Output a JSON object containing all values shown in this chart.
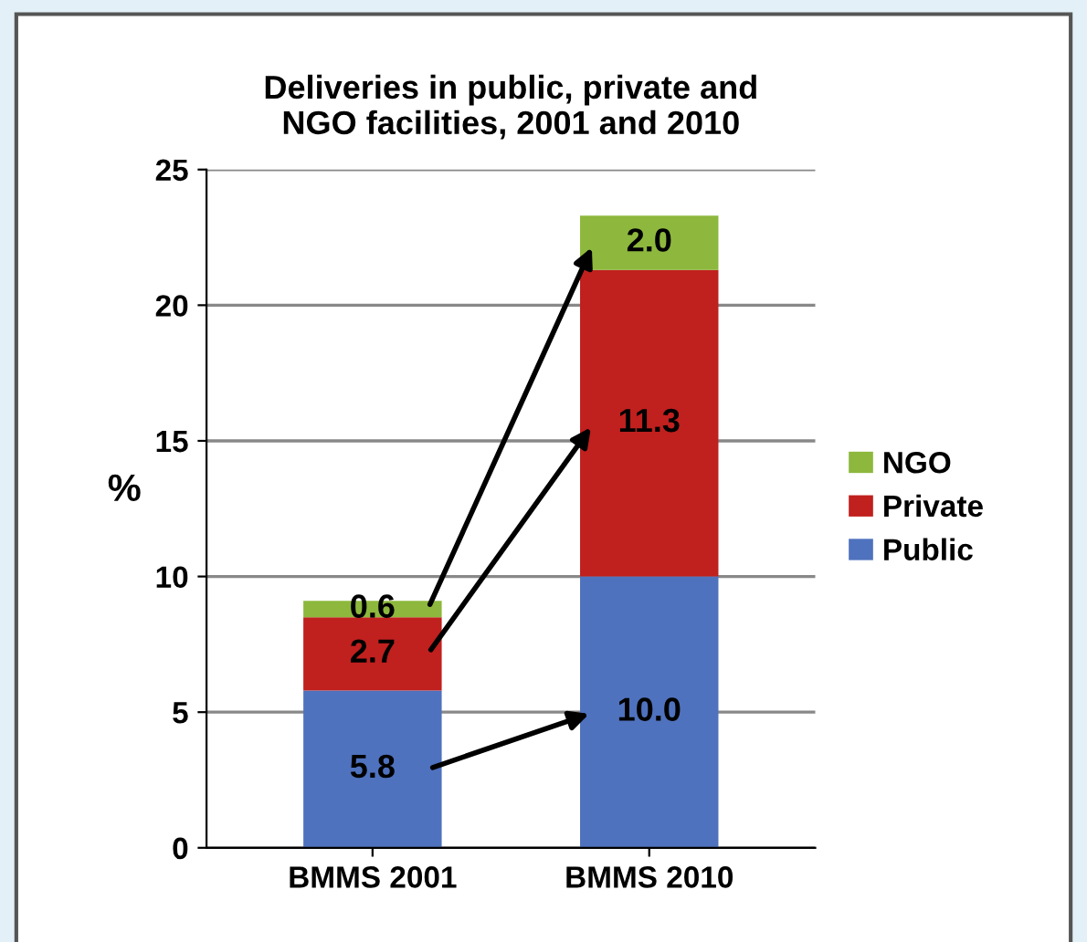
{
  "chart_data": {
    "type": "bar",
    "title": "Deliveries in public, private and\nNGO facilities, 2001 and 2010",
    "ylabel": "%",
    "categories": [
      "BMMS 2001",
      "BMMS 2010"
    ],
    "stacked": true,
    "series": [
      {
        "name": "Public",
        "color": "#4f72be",
        "values": [
          5.8,
          10.0
        ],
        "value_labels": [
          "5.8",
          "10.0"
        ]
      },
      {
        "name": "Private",
        "color": "#c0201e",
        "values": [
          2.7,
          11.3
        ],
        "value_labels": [
          "2.7",
          "11.3"
        ]
      },
      {
        "name": "NGO",
        "color": "#8db83d",
        "values": [
          0.6,
          2.0
        ],
        "value_labels": [
          "0.6",
          "2.0"
        ]
      }
    ],
    "ylim": [
      0,
      25
    ],
    "yticks": [
      0,
      5,
      10,
      15,
      20,
      25
    ],
    "grid": "y",
    "legend": "right"
  }
}
